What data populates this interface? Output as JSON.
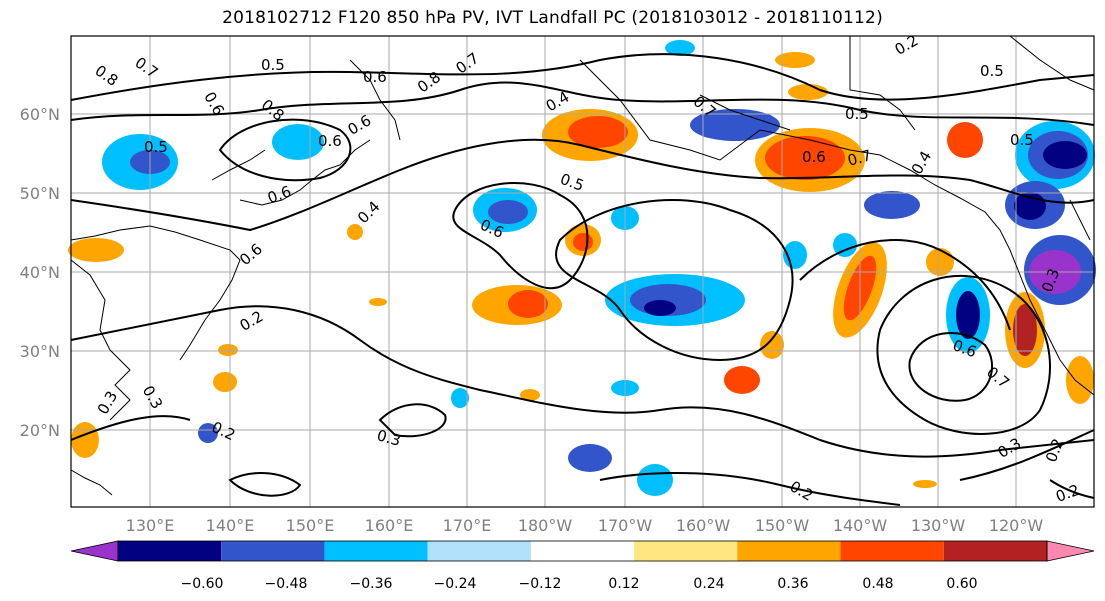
{
  "title": "2018102712 F120 850 hPa PV, IVT Landfall PC (2018103012 - 2018110112)",
  "map": {
    "lat_labels": [
      "60°N",
      "50°N",
      "40°N",
      "30°N",
      "20°N"
    ],
    "lon_labels": [
      "130°E",
      "140°E",
      "150°E",
      "160°E",
      "170°E",
      "180°W",
      "170°W",
      "160°W",
      "150°W",
      "140°W",
      "130°W",
      "120°W"
    ],
    "contour_labels": [
      "0.8",
      "0.7",
      "0.5",
      "0.6",
      "0.7",
      "0.8",
      "0.6",
      "0.6",
      "0.4",
      "0.5",
      "0.8",
      "0.7",
      "0.5",
      "0.7",
      "0.6",
      "0.5",
      "0.6",
      "0.6",
      "0.4",
      "0.6",
      "0.5",
      "0.6",
      "0.2",
      "0.3",
      "0.3",
      "0.2",
      "0.3",
      "0.2",
      "0.6",
      "0.7",
      "0.3",
      "0.2",
      "0.2",
      "0.3",
      "0.4",
      "0.5",
      "0.2"
    ]
  },
  "colorbar": {
    "ticks": [
      "−0.60",
      "−0.48",
      "−0.36",
      "−0.24",
      "−0.12",
      "0.12",
      "0.24",
      "0.36",
      "0.48",
      "0.60"
    ],
    "colors": [
      "#9933cc",
      "#000080",
      "#3355cc",
      "#00bfff",
      "#b0e0fa",
      "#ffffff",
      "#ffe680",
      "#ffa500",
      "#ff4500",
      "#b22222",
      "#ff88b0"
    ]
  }
}
